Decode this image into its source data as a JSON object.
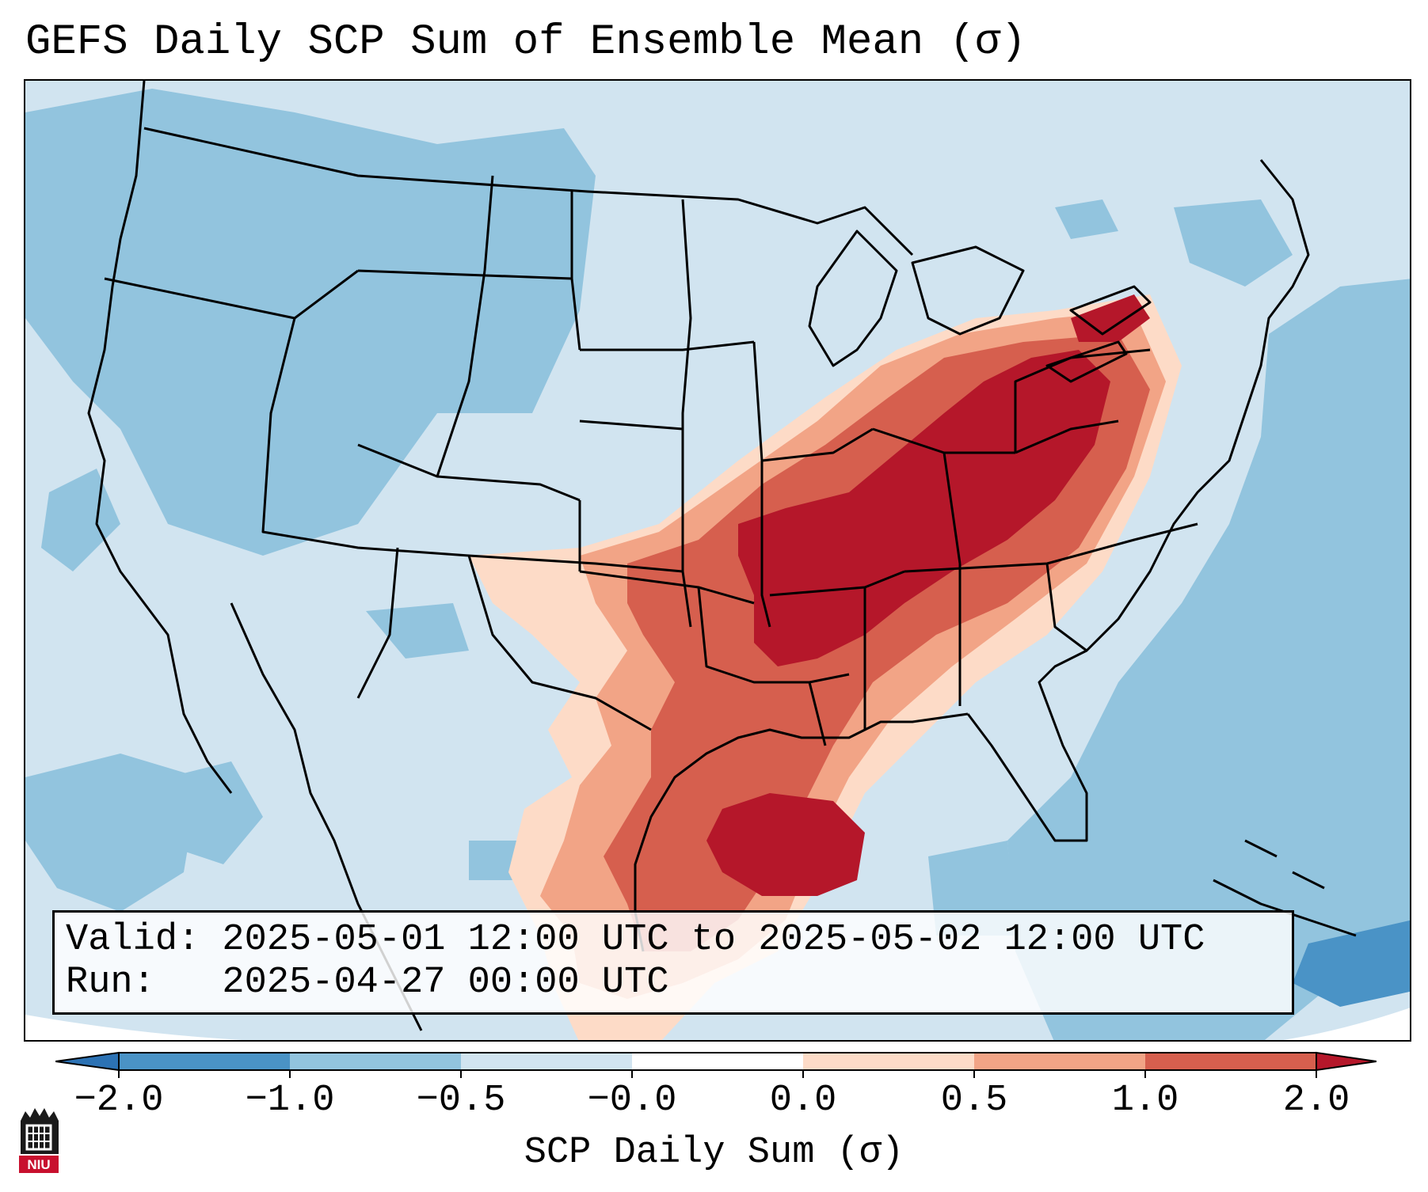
{
  "title": "GEFS Daily SCP Sum of Ensemble Mean (σ)",
  "info": {
    "valid": "Valid: 2025-05-01 12:00 UTC to 2025-05-02 12:00 UTC",
    "run": "Run:   2025-04-27 00:00 UTC"
  },
  "colorbar": {
    "label": "SCP Daily Sum (σ)",
    "ticks": [
      "−2.0",
      "−1.0",
      "−0.5",
      "−0.0",
      "0.0",
      "0.5",
      "1.0",
      "2.0"
    ],
    "colors": [
      "#2c72b4",
      "#4a93c6",
      "#92c4de",
      "#d1e4f0",
      "#fddbc7",
      "#f2a486",
      "#d65f4e",
      "#b5172a"
    ]
  },
  "logo": {
    "text": "NIU"
  }
}
